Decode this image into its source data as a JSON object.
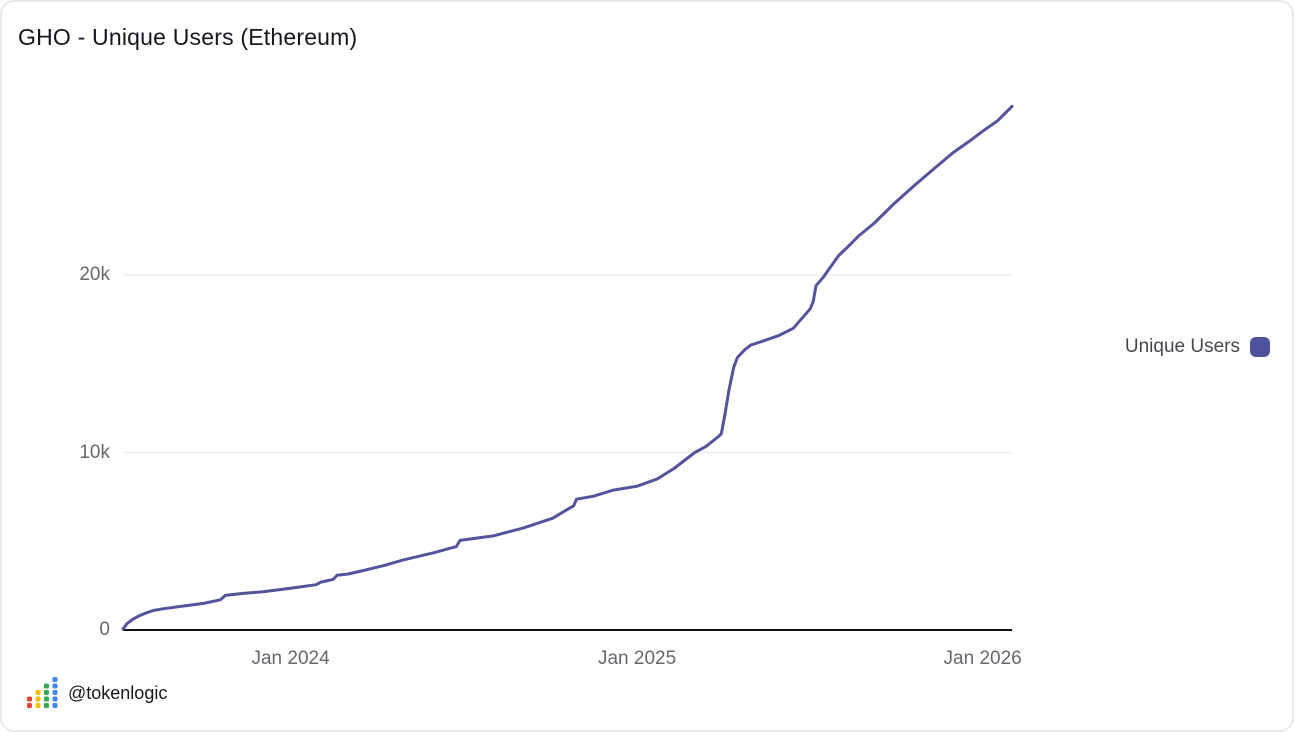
{
  "title": "GHO - Unique Users (Ethereum)",
  "colors": {
    "background": "#ffffff",
    "card_border": "#e9e9eb",
    "axis_line": "#111111",
    "gridline": "#ededf0",
    "tick_label": "#67676f",
    "title_text": "#16161e",
    "legend_text": "#47474f",
    "line": "#53549c",
    "legend_swatch": "#4f529d"
  },
  "footer": {
    "handle": "@tokenlogic",
    "icon": "mini-bar-chart-dots-icon",
    "icon_colors": [
      "#EA4335",
      "#FBBC04",
      "#34A853",
      "#4285F4"
    ],
    "icon_dot_counts": [
      2,
      3,
      4,
      5
    ]
  },
  "chart_data": {
    "type": "line",
    "title": "GHO - Unique Users (Ethereum)",
    "legend": [
      {
        "name": "Unique Users",
        "color": "#4f529d"
      }
    ],
    "legend_position": "right-center",
    "grid": "horizontal-only",
    "line_color": "#53549c",
    "xlabel": "",
    "ylabel": "",
    "x_axis": {
      "type": "time",
      "range": [
        "2023-07-08",
        "2026-02-01"
      ],
      "ticks": [
        {
          "value": "2024-01-01",
          "label": "Jan 2024"
        },
        {
          "value": "2025-01-01",
          "label": "Jan 2025"
        },
        {
          "value": "2026-01-01",
          "label": "Jan 2026"
        }
      ]
    },
    "y_axis": {
      "range": [
        0,
        30000
      ],
      "ticks": [
        {
          "value": 0,
          "label": "0"
        },
        {
          "value": 10000,
          "label": "10k"
        },
        {
          "value": 20000,
          "label": "20k"
        }
      ],
      "gridline_values": [
        10000,
        20000
      ]
    },
    "series": [
      {
        "name": "Unique Users",
        "points": [
          [
            "2023-07-08",
            50
          ],
          [
            "2023-07-12",
            350
          ],
          [
            "2023-07-18",
            600
          ],
          [
            "2023-07-25",
            800
          ],
          [
            "2023-08-01",
            950
          ],
          [
            "2023-08-09",
            1100
          ],
          [
            "2023-08-20",
            1200
          ],
          [
            "2023-09-10",
            1350
          ],
          [
            "2023-10-01",
            1500
          ],
          [
            "2023-10-19",
            1700
          ],
          [
            "2023-10-24",
            1950
          ],
          [
            "2023-11-12",
            2060
          ],
          [
            "2023-12-03",
            2160
          ],
          [
            "2024-01-01",
            2350
          ],
          [
            "2024-01-28",
            2550
          ],
          [
            "2024-02-02",
            2700
          ],
          [
            "2024-02-15",
            2850
          ],
          [
            "2024-02-19",
            3080
          ],
          [
            "2024-03-01",
            3150
          ],
          [
            "2024-03-18",
            3350
          ],
          [
            "2024-04-10",
            3650
          ],
          [
            "2024-04-29",
            3950
          ],
          [
            "2024-05-31",
            4350
          ],
          [
            "2024-06-24",
            4700
          ],
          [
            "2024-06-28",
            5050
          ],
          [
            "2024-08-02",
            5300
          ],
          [
            "2024-09-03",
            5750
          ],
          [
            "2024-10-04",
            6300
          ],
          [
            "2024-10-18",
            6750
          ],
          [
            "2024-10-26",
            7000
          ],
          [
            "2024-10-29",
            7370
          ],
          [
            "2024-11-16",
            7540
          ],
          [
            "2024-12-07",
            7880
          ],
          [
            "2025-01-01",
            8100
          ],
          [
            "2025-01-22",
            8500
          ],
          [
            "2025-02-09",
            9100
          ],
          [
            "2025-03-03",
            10000
          ],
          [
            "2025-03-15",
            10350
          ],
          [
            "2025-03-28",
            10900
          ],
          [
            "2025-03-31",
            11050
          ],
          [
            "2025-04-04",
            12200
          ],
          [
            "2025-04-08",
            13500
          ],
          [
            "2025-04-13",
            14800
          ],
          [
            "2025-04-17",
            15350
          ],
          [
            "2025-04-25",
            15800
          ],
          [
            "2025-05-01",
            16050
          ],
          [
            "2025-05-15",
            16300
          ],
          [
            "2025-05-31",
            16600
          ],
          [
            "2025-06-15",
            17000
          ],
          [
            "2025-07-03",
            18100
          ],
          [
            "2025-07-06",
            18500
          ],
          [
            "2025-07-09",
            19400
          ],
          [
            "2025-07-17",
            19900
          ],
          [
            "2025-08-02",
            21100
          ],
          [
            "2025-08-10",
            21500
          ],
          [
            "2025-08-23",
            22200
          ],
          [
            "2025-09-08",
            22900
          ],
          [
            "2025-09-29",
            24000
          ],
          [
            "2025-10-20",
            25000
          ],
          [
            "2025-11-13",
            26100
          ],
          [
            "2025-12-01",
            26900
          ],
          [
            "2025-12-17",
            27500
          ],
          [
            "2026-01-01",
            28100
          ],
          [
            "2026-01-17",
            28700
          ],
          [
            "2026-02-01",
            29500
          ]
        ]
      }
    ]
  }
}
